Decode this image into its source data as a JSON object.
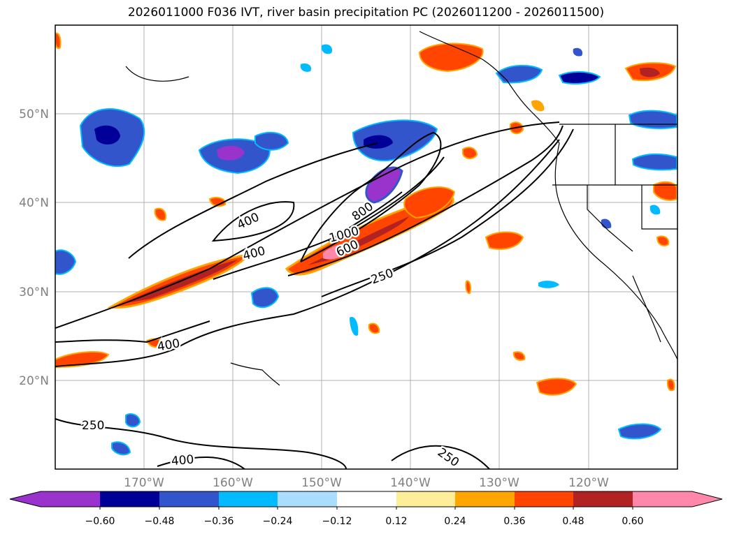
{
  "title": "2026011000 F036 IVT, river basin precipitation PC (2026011200 - 2026011500)",
  "map": {
    "lon_ticks": [
      "170°W",
      "160°W",
      "150°W",
      "140°W",
      "130°W",
      "120°W"
    ],
    "lat_ticks": [
      "50°N",
      "40°N",
      "30°N",
      "20°N"
    ],
    "contour_labels": [
      "400",
      "400",
      "400",
      "400",
      "800",
      "1000",
      "600",
      "250",
      "250",
      "250"
    ]
  },
  "colorbar": {
    "colors": [
      "#9933cc",
      "#000099",
      "#3355cc",
      "#00bbff",
      "#aaddff",
      "#ffffff",
      "#ffee99",
      "#ffa500",
      "#ff4500",
      "#b22222",
      "#ff88aa"
    ],
    "labels": [
      "−0.60",
      "−0.48",
      "−0.36",
      "−0.24",
      "−0.12",
      "0.12",
      "0.24",
      "0.36",
      "0.48",
      "0.60"
    ]
  },
  "colors": {
    "land_line": "#000000",
    "grid": "#b0b0b0",
    "tick_text": "#808080"
  }
}
